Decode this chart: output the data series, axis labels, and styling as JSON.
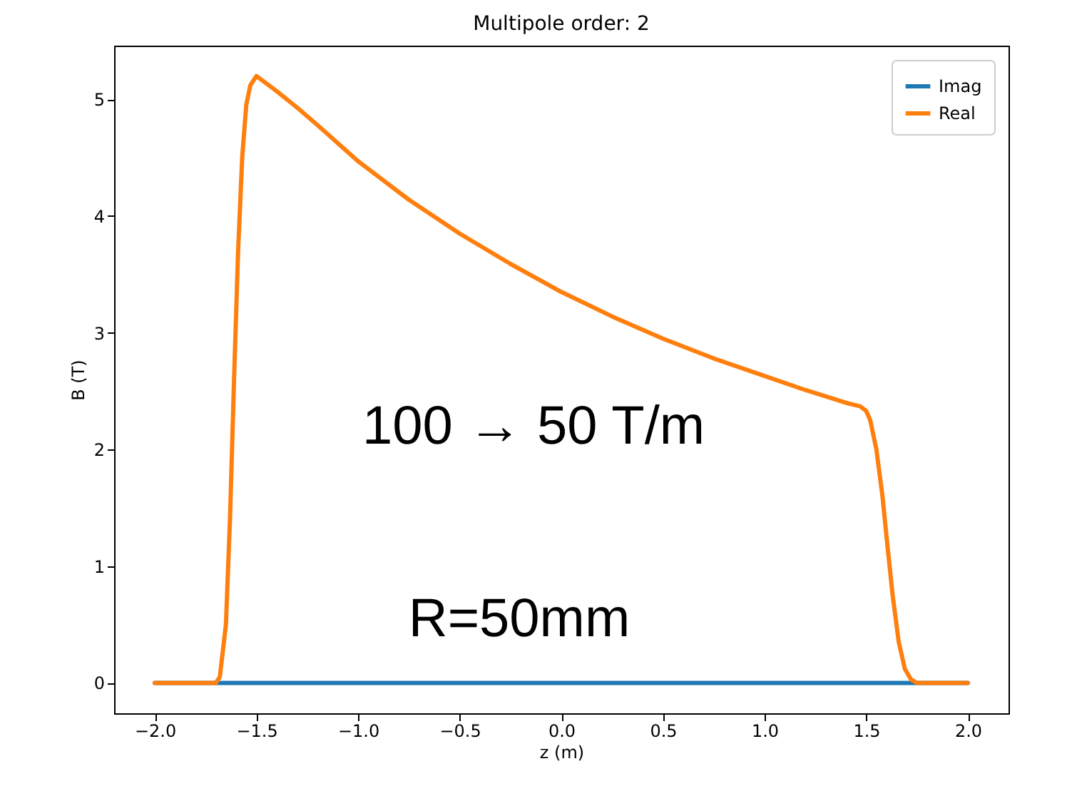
{
  "chart_data": {
    "type": "line",
    "title": "Multipole order: 2",
    "xlabel": "z (m)",
    "ylabel": "B (T)",
    "series": [
      {
        "name": "Imag",
        "color": "#1f77b4",
        "x": [
          -2,
          2
        ],
        "values": [
          0,
          0
        ]
      },
      {
        "name": "Real",
        "color": "#ff7f0e",
        "x": [
          -2,
          -1.7,
          -1.68,
          -1.65,
          -1.63,
          -1.61,
          -1.59,
          -1.57,
          -1.55,
          -1.53,
          -1.5,
          -1.4,
          -1.3,
          -1.2,
          -1,
          -0.75,
          -0.5,
          -0.25,
          0,
          0.25,
          0.5,
          0.75,
          1,
          1.2,
          1.4,
          1.47,
          1.5,
          1.52,
          1.55,
          1.58,
          1.6,
          1.63,
          1.66,
          1.69,
          1.72,
          1.75,
          2
        ],
        "values": [
          0,
          0,
          0.05,
          0.5,
          1.4,
          2.6,
          3.7,
          4.5,
          4.95,
          5.12,
          5.2,
          5.07,
          4.93,
          4.78,
          4.47,
          4.14,
          3.85,
          3.59,
          3.35,
          3.14,
          2.95,
          2.78,
          2.63,
          2.51,
          2.4,
          2.37,
          2.33,
          2.25,
          2.0,
          1.6,
          1.25,
          0.75,
          0.35,
          0.12,
          0.03,
          0,
          0
        ]
      }
    ],
    "xlim": [
      -2.2,
      2.2
    ],
    "ylim": [
      -0.26,
      5.46
    ],
    "xticks": [
      {
        "value": -2,
        "label": "−2.0"
      },
      {
        "value": -1.5,
        "label": "−1.5"
      },
      {
        "value": -1,
        "label": "−1.0"
      },
      {
        "value": -0.5,
        "label": "−0.5"
      },
      {
        "value": 0,
        "label": "0.0"
      },
      {
        "value": 0.5,
        "label": "0.5"
      },
      {
        "value": 1,
        "label": "1.0"
      },
      {
        "value": 1.5,
        "label": "1.5"
      },
      {
        "value": 2,
        "label": "2.0"
      }
    ],
    "yticks": [
      0,
      1,
      2,
      3,
      4,
      5
    ],
    "legend": "top right",
    "grid": false,
    "line_style": "solid",
    "marker": "none",
    "annotations": [
      "100 → 50 T/m",
      "R=50mm"
    ]
  }
}
